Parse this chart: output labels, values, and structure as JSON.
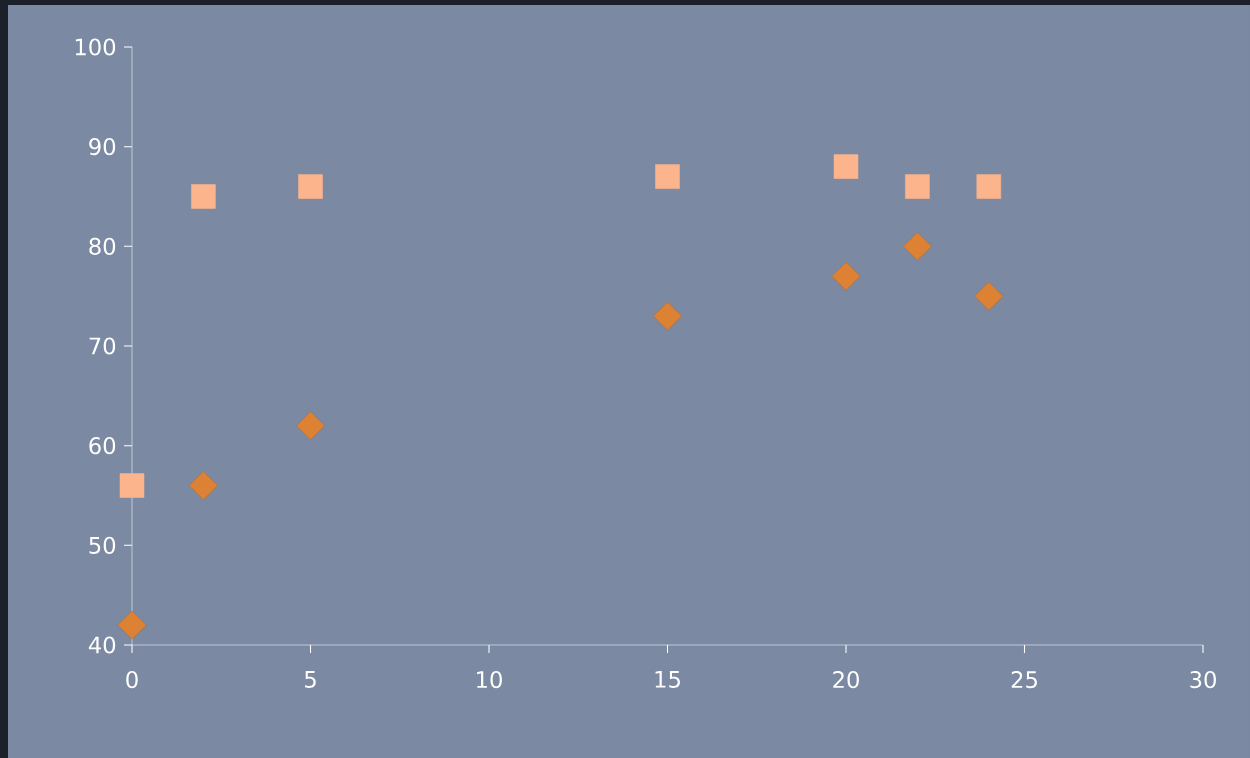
{
  "chart_data": {
    "type": "scatter",
    "xlim": [
      0,
      30
    ],
    "ylim": [
      40,
      100
    ],
    "xticks": [
      0,
      5,
      10,
      15,
      20,
      25,
      30
    ],
    "yticks": [
      40,
      50,
      60,
      70,
      80,
      90,
      100
    ],
    "grid": false,
    "series": [
      {
        "color": "#fbb48c",
        "marker": "square",
        "x": [
          0,
          2,
          5,
          15,
          20,
          22,
          24
        ],
        "values": [
          56,
          85,
          86,
          87,
          88,
          86,
          86
        ]
      },
      {
        "color": "#dd8235",
        "marker": "diamond",
        "x": [
          0,
          2,
          5,
          15,
          20,
          22,
          24
        ],
        "values": [
          42,
          56,
          62,
          73,
          77,
          80,
          75
        ]
      }
    ]
  }
}
